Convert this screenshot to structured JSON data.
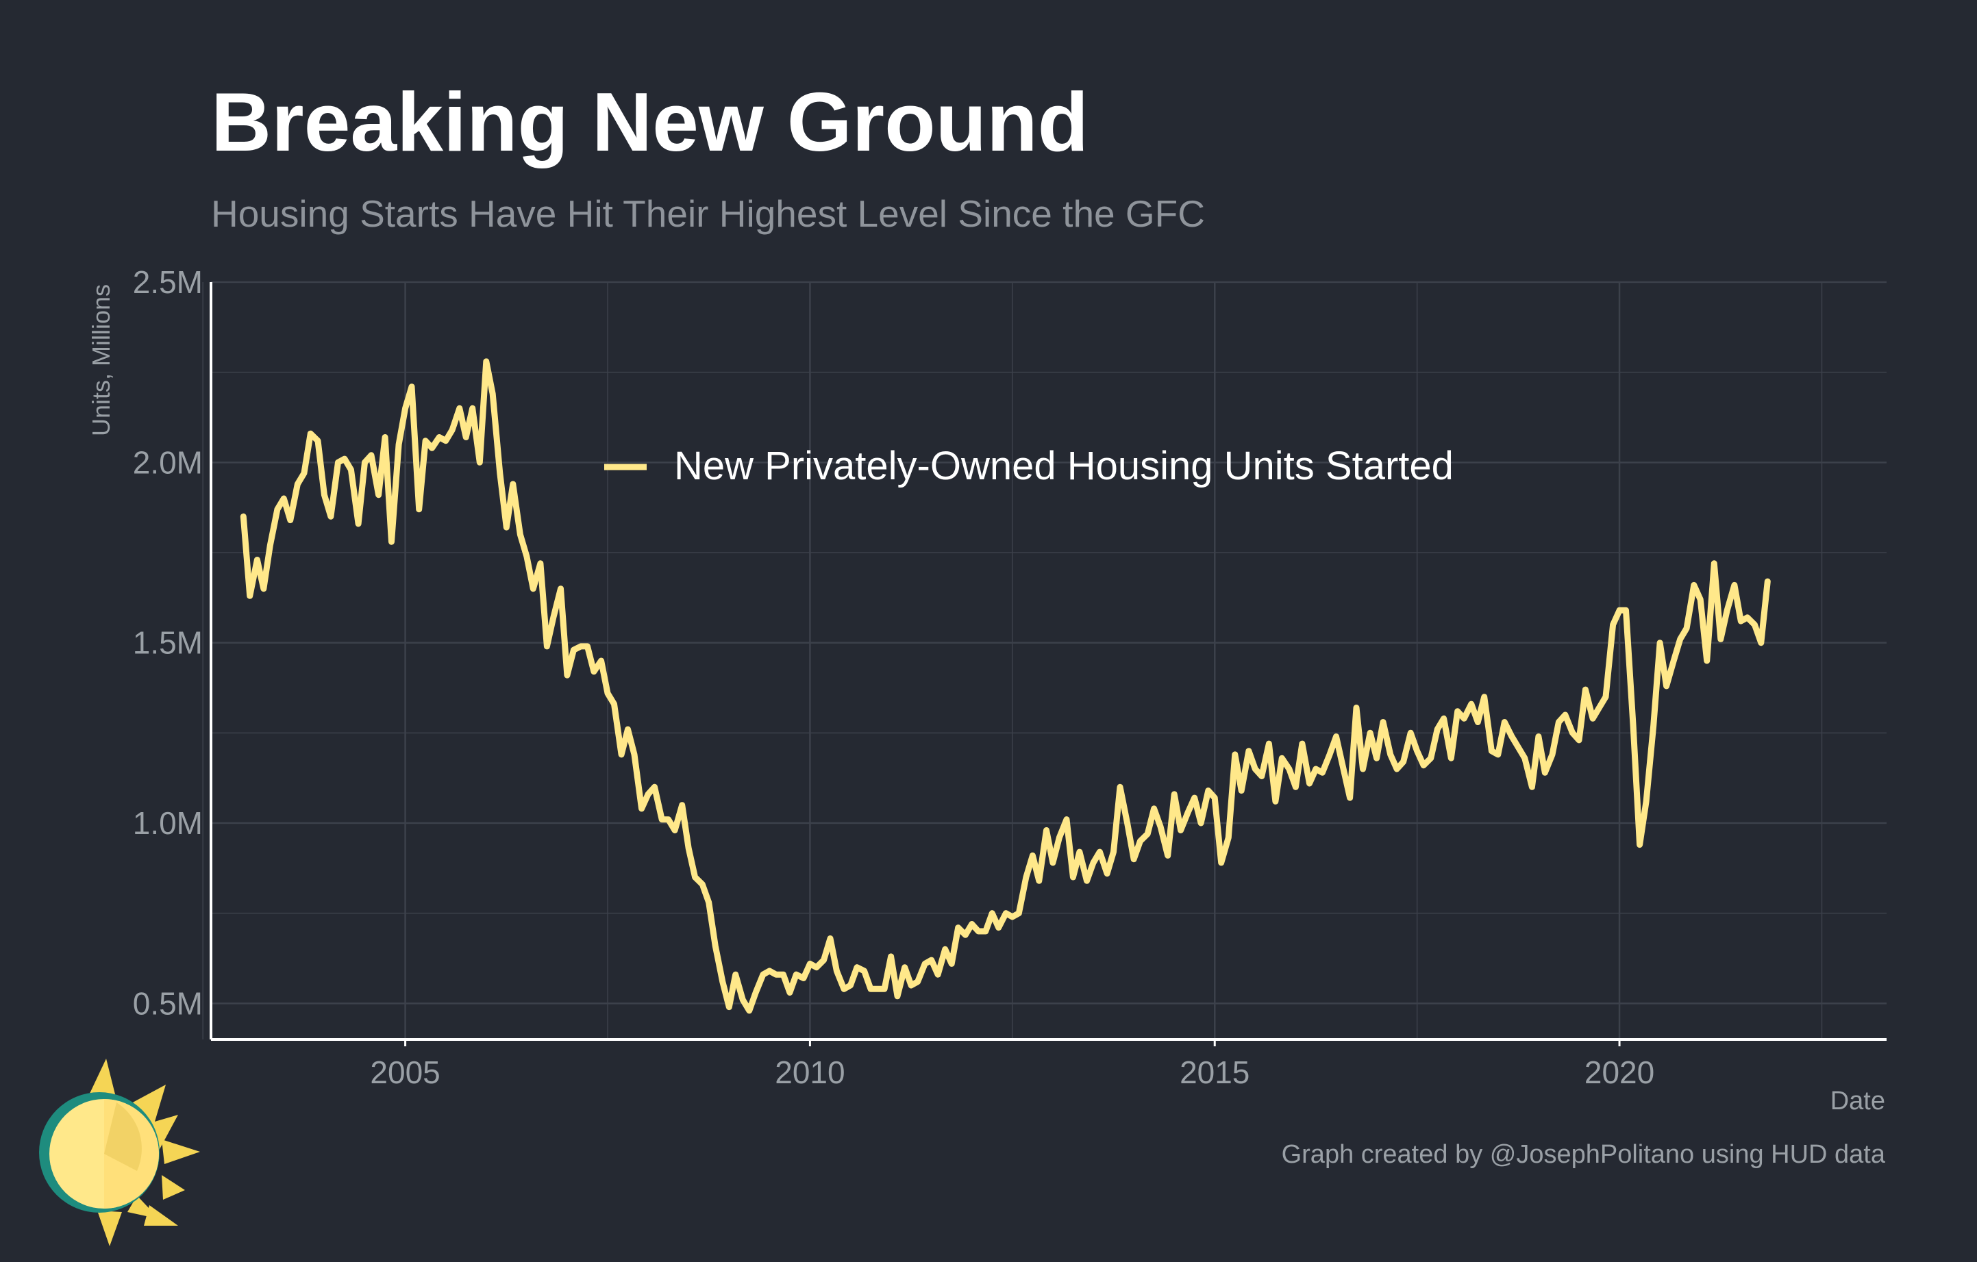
{
  "title": "Breaking New Ground",
  "subtitle": "Housing Starts Have Hit Their Highest Level Since the GFC",
  "caption": "Graph created by @JosephPolitano using HUD data",
  "logo": {
    "icon": "sun-icon"
  },
  "colors": {
    "background": "#252932",
    "line": "#FFE88A",
    "grid": "#3C414B",
    "axis": "#FFFFFF",
    "tick_text": "#9AA0A6"
  },
  "chart_data": {
    "type": "line",
    "title": "Breaking New Ground",
    "subtitle": "Housing Starts Have Hit Their Highest Level Since the GFC",
    "xlabel": "Date",
    "ylabel": "Units, Millions",
    "x_ticks": [
      2005,
      2010,
      2015,
      2020
    ],
    "y_ticks": [
      {
        "value": 0.5,
        "label": "0.5M"
      },
      {
        "value": 1.0,
        "label": "1.0M"
      },
      {
        "value": 1.5,
        "label": "1.5M"
      },
      {
        "value": 2.0,
        "label": "2.0M"
      },
      {
        "value": 2.5,
        "label": "2.5M"
      }
    ],
    "xlim": [
      2002.6,
      2023.3
    ],
    "ylim": [
      0.4,
      2.5
    ],
    "grid": true,
    "legend": {
      "position": "top-center"
    },
    "series": [
      {
        "name": "New Privately-Owned Housing Units Started",
        "color": "#FFE88A",
        "points": [
          [
            2003.0,
            1.85
          ],
          [
            2003.08,
            1.63
          ],
          [
            2003.17,
            1.73
          ],
          [
            2003.25,
            1.65
          ],
          [
            2003.33,
            1.77
          ],
          [
            2003.42,
            1.87
          ],
          [
            2003.5,
            1.9
          ],
          [
            2003.58,
            1.84
          ],
          [
            2003.67,
            1.94
          ],
          [
            2003.75,
            1.97
          ],
          [
            2003.83,
            2.08
          ],
          [
            2003.92,
            2.06
          ],
          [
            2004.0,
            1.91
          ],
          [
            2004.08,
            1.85
          ],
          [
            2004.17,
            2.0
          ],
          [
            2004.25,
            2.01
          ],
          [
            2004.33,
            1.98
          ],
          [
            2004.42,
            1.83
          ],
          [
            2004.5,
            2.0
          ],
          [
            2004.58,
            2.02
          ],
          [
            2004.67,
            1.91
          ],
          [
            2004.75,
            2.07
          ],
          [
            2004.83,
            1.78
          ],
          [
            2004.92,
            2.05
          ],
          [
            2005.0,
            2.15
          ],
          [
            2005.08,
            2.21
          ],
          [
            2005.17,
            1.87
          ],
          [
            2005.25,
            2.06
          ],
          [
            2005.33,
            2.04
          ],
          [
            2005.42,
            2.07
          ],
          [
            2005.5,
            2.06
          ],
          [
            2005.58,
            2.09
          ],
          [
            2005.67,
            2.15
          ],
          [
            2005.75,
            2.07
          ],
          [
            2005.83,
            2.15
          ],
          [
            2005.92,
            2.0
          ],
          [
            2006.0,
            2.28
          ],
          [
            2006.08,
            2.19
          ],
          [
            2006.17,
            1.97
          ],
          [
            2006.25,
            1.82
          ],
          [
            2006.33,
            1.94
          ],
          [
            2006.42,
            1.8
          ],
          [
            2006.5,
            1.74
          ],
          [
            2006.58,
            1.65
          ],
          [
            2006.67,
            1.72
          ],
          [
            2006.75,
            1.49
          ],
          [
            2006.83,
            1.57
          ],
          [
            2006.92,
            1.65
          ],
          [
            2007.0,
            1.41
          ],
          [
            2007.08,
            1.48
          ],
          [
            2007.17,
            1.49
          ],
          [
            2007.25,
            1.49
          ],
          [
            2007.33,
            1.42
          ],
          [
            2007.42,
            1.45
          ],
          [
            2007.5,
            1.36
          ],
          [
            2007.58,
            1.33
          ],
          [
            2007.67,
            1.19
          ],
          [
            2007.75,
            1.26
          ],
          [
            2007.83,
            1.19
          ],
          [
            2007.92,
            1.04
          ],
          [
            2008.0,
            1.08
          ],
          [
            2008.08,
            1.1
          ],
          [
            2008.17,
            1.01
          ],
          [
            2008.25,
            1.01
          ],
          [
            2008.33,
            0.98
          ],
          [
            2008.42,
            1.05
          ],
          [
            2008.5,
            0.93
          ],
          [
            2008.58,
            0.85
          ],
          [
            2008.67,
            0.83
          ],
          [
            2008.75,
            0.78
          ],
          [
            2008.83,
            0.66
          ],
          [
            2008.92,
            0.56
          ],
          [
            2009.0,
            0.49
          ],
          [
            2009.08,
            0.58
          ],
          [
            2009.17,
            0.51
          ],
          [
            2009.25,
            0.48
          ],
          [
            2009.33,
            0.53
          ],
          [
            2009.42,
            0.58
          ],
          [
            2009.5,
            0.59
          ],
          [
            2009.58,
            0.58
          ],
          [
            2009.67,
            0.58
          ],
          [
            2009.75,
            0.53
          ],
          [
            2009.83,
            0.58
          ],
          [
            2009.92,
            0.57
          ],
          [
            2010.0,
            0.61
          ],
          [
            2010.08,
            0.6
          ],
          [
            2010.17,
            0.62
          ],
          [
            2010.25,
            0.68
          ],
          [
            2010.33,
            0.59
          ],
          [
            2010.42,
            0.54
          ],
          [
            2010.5,
            0.55
          ],
          [
            2010.58,
            0.6
          ],
          [
            2010.67,
            0.59
          ],
          [
            2010.75,
            0.54
          ],
          [
            2010.83,
            0.54
          ],
          [
            2010.92,
            0.54
          ],
          [
            2011.0,
            0.63
          ],
          [
            2011.08,
            0.52
          ],
          [
            2011.17,
            0.6
          ],
          [
            2011.25,
            0.55
          ],
          [
            2011.33,
            0.56
          ],
          [
            2011.42,
            0.61
          ],
          [
            2011.5,
            0.62
          ],
          [
            2011.58,
            0.58
          ],
          [
            2011.67,
            0.65
          ],
          [
            2011.75,
            0.61
          ],
          [
            2011.83,
            0.71
          ],
          [
            2011.92,
            0.69
          ],
          [
            2012.0,
            0.72
          ],
          [
            2012.08,
            0.7
          ],
          [
            2012.17,
            0.7
          ],
          [
            2012.25,
            0.75
          ],
          [
            2012.33,
            0.71
          ],
          [
            2012.42,
            0.75
          ],
          [
            2012.5,
            0.74
          ],
          [
            2012.58,
            0.75
          ],
          [
            2012.67,
            0.85
          ],
          [
            2012.75,
            0.91
          ],
          [
            2012.83,
            0.84
          ],
          [
            2012.92,
            0.98
          ],
          [
            2013.0,
            0.89
          ],
          [
            2013.08,
            0.96
          ],
          [
            2013.17,
            1.01
          ],
          [
            2013.25,
            0.85
          ],
          [
            2013.33,
            0.92
          ],
          [
            2013.42,
            0.84
          ],
          [
            2013.5,
            0.89
          ],
          [
            2013.58,
            0.92
          ],
          [
            2013.67,
            0.86
          ],
          [
            2013.75,
            0.92
          ],
          [
            2013.83,
            1.1
          ],
          [
            2013.92,
            1.0
          ],
          [
            2014.0,
            0.9
          ],
          [
            2014.08,
            0.95
          ],
          [
            2014.17,
            0.97
          ],
          [
            2014.25,
            1.04
          ],
          [
            2014.33,
            0.99
          ],
          [
            2014.42,
            0.91
          ],
          [
            2014.5,
            1.08
          ],
          [
            2014.58,
            0.98
          ],
          [
            2014.67,
            1.03
          ],
          [
            2014.75,
            1.07
          ],
          [
            2014.83,
            1.0
          ],
          [
            2014.92,
            1.09
          ],
          [
            2015.0,
            1.07
          ],
          [
            2015.08,
            0.89
          ],
          [
            2015.17,
            0.96
          ],
          [
            2015.25,
            1.19
          ],
          [
            2015.33,
            1.09
          ],
          [
            2015.42,
            1.2
          ],
          [
            2015.5,
            1.15
          ],
          [
            2015.58,
            1.13
          ],
          [
            2015.67,
            1.22
          ],
          [
            2015.75,
            1.06
          ],
          [
            2015.83,
            1.18
          ],
          [
            2015.92,
            1.15
          ],
          [
            2016.0,
            1.1
          ],
          [
            2016.08,
            1.22
          ],
          [
            2016.17,
            1.11
          ],
          [
            2016.25,
            1.15
          ],
          [
            2016.33,
            1.14
          ],
          [
            2016.42,
            1.19
          ],
          [
            2016.5,
            1.24
          ],
          [
            2016.58,
            1.16
          ],
          [
            2016.67,
            1.07
          ],
          [
            2016.75,
            1.32
          ],
          [
            2016.83,
            1.15
          ],
          [
            2016.92,
            1.25
          ],
          [
            2017.0,
            1.18
          ],
          [
            2017.08,
            1.28
          ],
          [
            2017.17,
            1.19
          ],
          [
            2017.25,
            1.15
          ],
          [
            2017.33,
            1.17
          ],
          [
            2017.42,
            1.25
          ],
          [
            2017.5,
            1.2
          ],
          [
            2017.58,
            1.16
          ],
          [
            2017.67,
            1.18
          ],
          [
            2017.75,
            1.26
          ],
          [
            2017.83,
            1.29
          ],
          [
            2017.92,
            1.18
          ],
          [
            2018.0,
            1.31
          ],
          [
            2018.08,
            1.29
          ],
          [
            2018.17,
            1.33
          ],
          [
            2018.25,
            1.28
          ],
          [
            2018.33,
            1.35
          ],
          [
            2018.42,
            1.2
          ],
          [
            2018.5,
            1.19
          ],
          [
            2018.58,
            1.28
          ],
          [
            2018.67,
            1.24
          ],
          [
            2018.75,
            1.21
          ],
          [
            2018.83,
            1.18
          ],
          [
            2018.92,
            1.1
          ],
          [
            2019.0,
            1.24
          ],
          [
            2019.08,
            1.14
          ],
          [
            2019.17,
            1.19
          ],
          [
            2019.25,
            1.28
          ],
          [
            2019.33,
            1.3
          ],
          [
            2019.42,
            1.25
          ],
          [
            2019.5,
            1.23
          ],
          [
            2019.58,
            1.37
          ],
          [
            2019.67,
            1.29
          ],
          [
            2019.75,
            1.32
          ],
          [
            2019.83,
            1.35
          ],
          [
            2019.92,
            1.55
          ],
          [
            2020.0,
            1.59
          ],
          [
            2020.08,
            1.59
          ],
          [
            2020.17,
            1.27
          ],
          [
            2020.25,
            0.94
          ],
          [
            2020.33,
            1.06
          ],
          [
            2020.42,
            1.27
          ],
          [
            2020.5,
            1.5
          ],
          [
            2020.58,
            1.38
          ],
          [
            2020.67,
            1.45
          ],
          [
            2020.75,
            1.51
          ],
          [
            2020.83,
            1.54
          ],
          [
            2020.92,
            1.66
          ],
          [
            2021.0,
            1.62
          ],
          [
            2021.08,
            1.45
          ],
          [
            2021.17,
            1.72
          ],
          [
            2021.25,
            1.51
          ],
          [
            2021.33,
            1.59
          ],
          [
            2021.42,
            1.66
          ],
          [
            2021.5,
            1.56
          ],
          [
            2021.58,
            1.57
          ],
          [
            2021.67,
            1.55
          ],
          [
            2021.75,
            1.5
          ],
          [
            2021.83,
            1.67
          ]
        ]
      }
    ]
  }
}
